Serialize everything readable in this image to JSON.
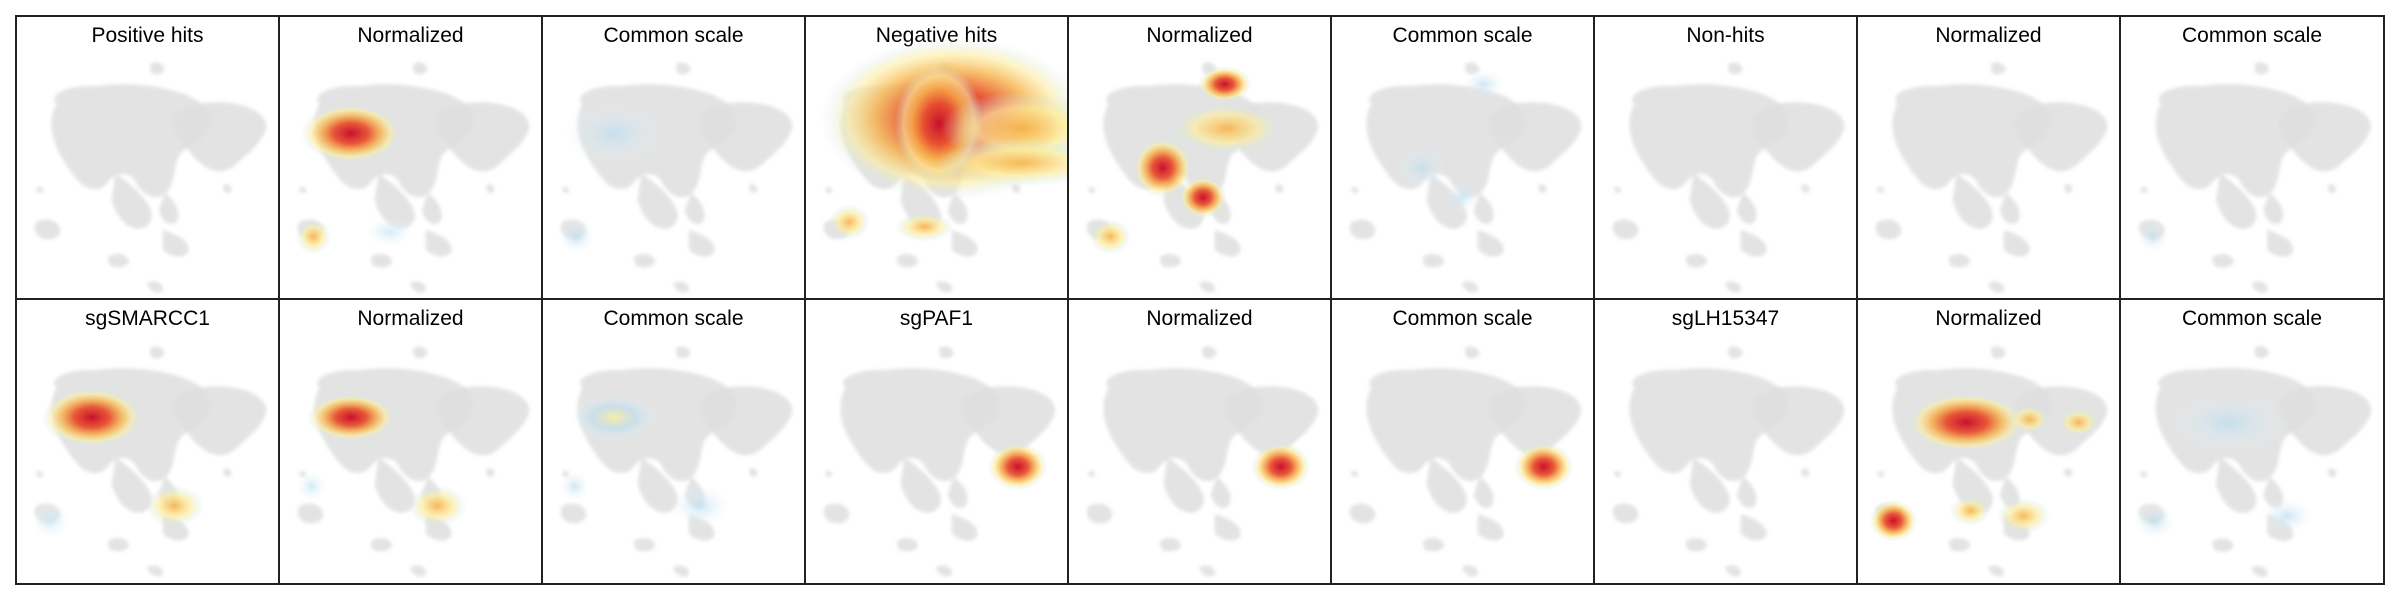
{
  "colors": {
    "cell_map": "#dedede",
    "border": "#222222",
    "hot": [
      "#c8102e",
      "#e8502f",
      "#f7b24a",
      "#fdeea0",
      "#c9e7f4"
    ],
    "faint": "#b9dcef"
  },
  "rows": [
    {
      "panels": [
        {
          "title": "Positive hits",
          "mode": "none"
        },
        {
          "title": "Normalized",
          "mode": "hot"
        },
        {
          "title": "Common scale",
          "mode": "faint"
        },
        {
          "title": "Negative hits",
          "mode": "hot"
        },
        {
          "title": "Normalized",
          "mode": "hot"
        },
        {
          "title": "Common scale",
          "mode": "faint"
        },
        {
          "title": "Non-hits",
          "mode": "none"
        },
        {
          "title": "Normalized",
          "mode": "none"
        },
        {
          "title": "Common scale",
          "mode": "faint"
        }
      ]
    },
    {
      "panels": [
        {
          "title": "sgSMARCC1",
          "mode": "hot"
        },
        {
          "title": "Normalized",
          "mode": "hot"
        },
        {
          "title": "Common scale",
          "mode": "faint"
        },
        {
          "title": "sgPAF1",
          "mode": "hot"
        },
        {
          "title": "Normalized",
          "mode": "hot"
        },
        {
          "title": "Common scale",
          "mode": "hot"
        },
        {
          "title": "sgLH15347",
          "mode": "none"
        },
        {
          "title": "Normalized",
          "mode": "hot"
        },
        {
          "title": "Common scale",
          "mode": "faint"
        }
      ]
    }
  ]
}
